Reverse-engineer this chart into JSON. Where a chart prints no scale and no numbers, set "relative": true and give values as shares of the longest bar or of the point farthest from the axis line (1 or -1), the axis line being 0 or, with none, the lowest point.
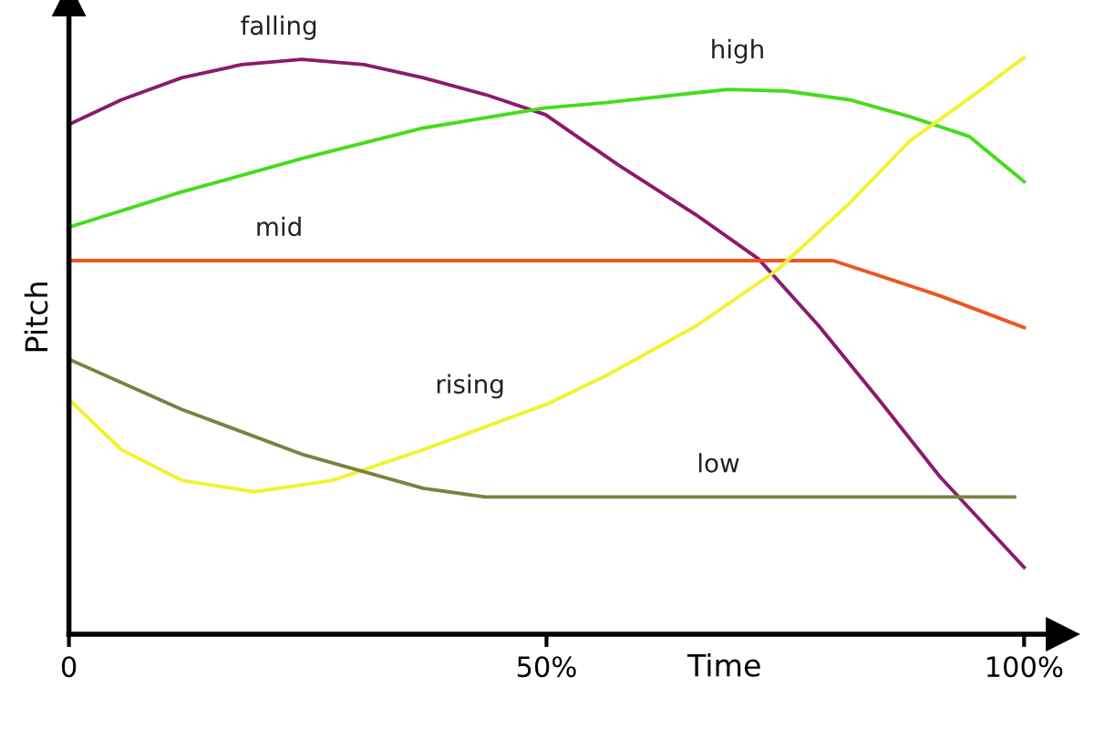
{
  "chart_data": {
    "type": "line",
    "relative": true,
    "xlabel": "Time",
    "ylabel": "Pitch",
    "xlim": [
      0,
      104
    ],
    "xticks": [
      {
        "value": 0,
        "label": "0"
      },
      {
        "value": 50,
        "label": "50%"
      },
      {
        "value": 100,
        "label": "100%"
      }
    ],
    "grid": false,
    "legend": false,
    "series": [
      {
        "name": "falling",
        "color": "#8b1a6e",
        "x": [
          0,
          5.5,
          11.8,
          18.1,
          24.4,
          30.9,
          37.1,
          43.6,
          49.9,
          57.5,
          65.7,
          72.2,
          78.5,
          84.8,
          91.2,
          100
        ],
        "values": [
          0.884,
          0.927,
          0.965,
          0.988,
          0.997,
          0.988,
          0.965,
          0.936,
          0.901,
          0.814,
          0.727,
          0.651,
          0.535,
          0.407,
          0.273,
          0.116
        ]
      },
      {
        "name": "high",
        "color": "#44dd1a",
        "x": [
          0,
          11.8,
          24.6,
          37.1,
          49.9,
          56.2,
          69,
          75.2,
          81.7,
          88,
          94.3,
          100
        ],
        "values": [
          0.706,
          0.767,
          0.826,
          0.878,
          0.913,
          0.922,
          0.945,
          0.942,
          0.927,
          0.898,
          0.863,
          0.785
        ]
      },
      {
        "name": "mid",
        "color": "#ee5522",
        "x": [
          0,
          50,
          80,
          84.8,
          91.2,
          100
        ],
        "values": [
          0.648,
          0.648,
          0.648,
          0.622,
          0.587,
          0.532
        ]
      },
      {
        "name": "rising",
        "color": "#f2f230",
        "x": [
          0,
          5.5,
          11.8,
          19.4,
          27.6,
          37.1,
          49.9,
          56.2,
          65.7,
          74.1,
          81.7,
          88,
          94.3,
          100
        ],
        "values": [
          0.407,
          0.32,
          0.267,
          0.247,
          0.267,
          0.32,
          0.398,
          0.448,
          0.535,
          0.631,
          0.747,
          0.855,
          0.93,
          1.0
        ]
      },
      {
        "name": "low",
        "color": "#7d8040",
        "x": [
          0,
          11.8,
          24.6,
          37.1,
          43.6,
          99
        ],
        "values": [
          0.477,
          0.39,
          0.311,
          0.253,
          0.238,
          0.238
        ]
      }
    ]
  }
}
